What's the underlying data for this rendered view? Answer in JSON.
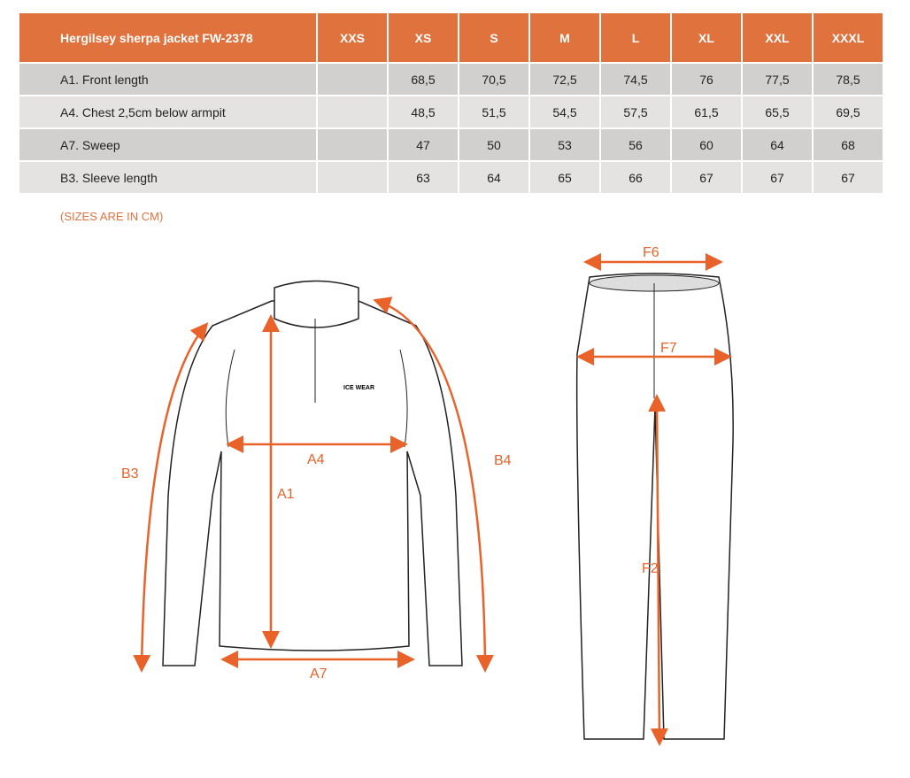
{
  "table": {
    "title": "Hergilsey sherpa jacket FW-2378",
    "sizes": [
      "XXS",
      "XS",
      "S",
      "M",
      "L",
      "XL",
      "XXL",
      "XXXL"
    ],
    "rows": [
      {
        "label": "A1. Front length",
        "values": [
          "",
          "68,5",
          "70,5",
          "72,5",
          "74,5",
          "76",
          "77,5",
          "78,5"
        ]
      },
      {
        "label": "A4. Chest 2,5cm below armpit",
        "values": [
          "",
          "48,5",
          "51,5",
          "54,5",
          "57,5",
          "61,5",
          "65,5",
          "69,5"
        ]
      },
      {
        "label": "A7. Sweep",
        "values": [
          "",
          "47",
          "50",
          "53",
          "56",
          "60",
          "64",
          "68"
        ]
      },
      {
        "label": "B3. Sleeve length",
        "values": [
          "",
          "63",
          "64",
          "65",
          "66",
          "67",
          "67",
          "67"
        ]
      }
    ]
  },
  "note": "(SIZES ARE IN CM)",
  "jacket": {
    "labels": {
      "a1": "A1",
      "a4": "A4",
      "a7": "A7",
      "b3": "B3",
      "b4": "B4"
    },
    "logo": "ICE WEAR"
  },
  "pants": {
    "labels": {
      "f6": "F6",
      "f7": "F7",
      "f2": "F2"
    }
  },
  "colors": {
    "header": "#e0723e",
    "arrow": "#e8622a"
  }
}
